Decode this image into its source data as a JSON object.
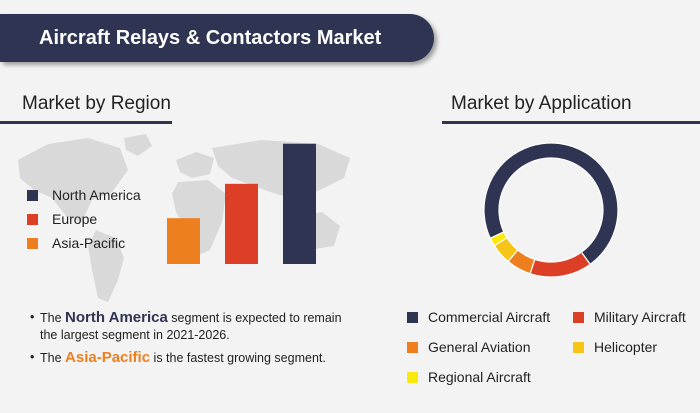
{
  "header": {
    "title": "Aircraft Relays & Contactors Market"
  },
  "region_section": {
    "title": "Market by Region"
  },
  "application_section": {
    "title": "Market by Application"
  },
  "colors": {
    "navy": "#2f3452",
    "red": "#dc3f26",
    "orange": "#ee7f1e",
    "yellow": "#f7c518",
    "bright_yellow": "#fbe90c",
    "map_gray": "#d9d9d9"
  },
  "bullets": [
    {
      "prefix": "The ",
      "highlight": "North America",
      "highlight_color": "#2f3452",
      "suffix": " segment is expected to remain the largest segment in 2021-2026."
    },
    {
      "prefix": "The ",
      "highlight": "Asia-Pacific",
      "highlight_color": "#ee7f1e",
      "suffix": " is the fastest growing segment."
    }
  ],
  "chart_data": [
    {
      "type": "bar",
      "categories": [
        "Asia-Pacific",
        "Europe",
        "North America"
      ],
      "values": [
        40,
        70,
        105
      ],
      "colors": [
        "#ee7f1e",
        "#dc3f26",
        "#2f3452"
      ],
      "legend": [
        {
          "label": "North America",
          "color": "#2f3452"
        },
        {
          "label": "Europe",
          "color": "#dc3f26"
        },
        {
          "label": "Asia-Pacific",
          "color": "#ee7f1e"
        }
      ],
      "legend_position": "left",
      "ylim": [
        0,
        110
      ],
      "grid": false
    },
    {
      "type": "pie",
      "donut": true,
      "categories": [
        "Commercial Aircraft",
        "Military Aircraft",
        "General Aviation",
        "Helicopter",
        "Regional Aircraft"
      ],
      "values": [
        72,
        15,
        6,
        5,
        2
      ],
      "colors": [
        "#2f3452",
        "#dc3f26",
        "#ee7f1e",
        "#f7c518",
        "#fbe90c"
      ],
      "legend_position": "bottom"
    }
  ]
}
